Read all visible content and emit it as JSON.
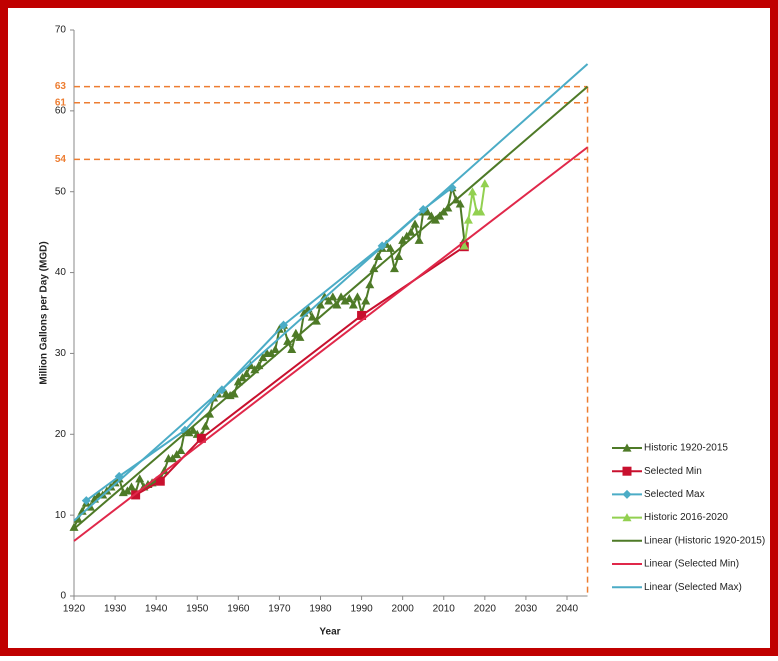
{
  "chart_data": {
    "type": "line",
    "xlabel": "Year",
    "ylabel": "Million Gallons per Day (MGD)",
    "xlim": [
      1920,
      2045
    ],
    "xticks": [
      1920,
      1930,
      1940,
      1950,
      1960,
      1970,
      1980,
      1990,
      2000,
      2010,
      2020,
      2030,
      2040
    ],
    "ylim": [
      0,
      70
    ],
    "yticks": [
      0,
      10,
      20,
      30,
      40,
      50,
      60,
      70
    ],
    "reference_lines": {
      "y": [
        63,
        61,
        54
      ],
      "x": [
        2045
      ],
      "color": "#ed7d31"
    },
    "series": [
      {
        "name": "Historic 1920-2015",
        "color": "#4e7a27",
        "marker": "triangle",
        "x": [
          1920,
          1921,
          1922,
          1923,
          1924,
          1925,
          1926,
          1927,
          1928,
          1929,
          1930,
          1931,
          1932,
          1933,
          1934,
          1935,
          1936,
          1937,
          1938,
          1939,
          1940,
          1941,
          1942,
          1943,
          1944,
          1945,
          1946,
          1947,
          1948,
          1949,
          1950,
          1951,
          1952,
          1953,
          1954,
          1955,
          1956,
          1957,
          1958,
          1959,
          1960,
          1961,
          1962,
          1963,
          1964,
          1965,
          1966,
          1967,
          1968,
          1969,
          1970,
          1971,
          1972,
          1973,
          1974,
          1975,
          1976,
          1977,
          1978,
          1979,
          1980,
          1981,
          1982,
          1983,
          1984,
          1985,
          1986,
          1987,
          1988,
          1989,
          1990,
          1991,
          1992,
          1993,
          1994,
          1995,
          1996,
          1997,
          1998,
          1999,
          2000,
          2001,
          2002,
          2003,
          2004,
          2005,
          2006,
          2007,
          2008,
          2009,
          2010,
          2011,
          2012,
          2013,
          2014,
          2015
        ],
        "values": [
          8.5,
          9.5,
          10.5,
          11.5,
          11,
          12,
          12.5,
          12.5,
          13,
          13.5,
          14,
          14.5,
          12.8,
          13,
          13.5,
          12.8,
          14.5,
          13.5,
          13.8,
          14,
          14.2,
          14.5,
          15.5,
          17,
          17,
          17.5,
          18,
          20.5,
          20.2,
          20.5,
          20,
          19.8,
          21,
          22.5,
          24.5,
          25,
          25.5,
          25,
          24.8,
          25,
          26.5,
          27,
          27.5,
          28.5,
          28,
          28.5,
          29.5,
          30,
          30,
          30.5,
          33,
          33.5,
          31.5,
          30.5,
          32.5,
          32,
          35,
          35.5,
          34.5,
          34,
          36,
          37,
          36.5,
          37,
          36,
          37,
          36.5,
          36.8,
          36,
          37,
          35,
          36.5,
          38.5,
          40.5,
          42,
          43,
          43.5,
          43,
          40.5,
          42,
          44,
          44.5,
          45,
          46,
          44,
          47.5,
          47.5,
          47,
          46.5,
          47,
          47.5,
          48,
          50.5,
          49,
          48.5,
          44
        ]
      },
      {
        "name": "Selected Min",
        "color": "#c8102e",
        "marker": "square",
        "x": [
          1935,
          1941,
          1951,
          1990,
          2015
        ],
        "values": [
          12.5,
          14.2,
          19.5,
          34.7,
          43.2
        ]
      },
      {
        "name": "Selected Max",
        "color": "#4bacc6",
        "marker": "diamond",
        "x": [
          1923,
          1931,
          1947,
          1956,
          1971,
          1995,
          2005,
          2012
        ],
        "values": [
          11.8,
          14.8,
          20.5,
          25.5,
          33.5,
          43.3,
          47.8,
          50.5
        ]
      },
      {
        "name": "Historic 2016-2020",
        "color": "#92d050",
        "marker": "triangle",
        "x": [
          2015,
          2016,
          2017,
          2018,
          2019,
          2020
        ],
        "values": [
          43.3,
          46.5,
          50,
          47.5,
          47.5,
          51
        ]
      },
      {
        "name": "Linear (Historic 1920-2015)",
        "color": "#4e7a27",
        "marker": "none",
        "x": [
          1920,
          2045
        ],
        "values": [
          8.3,
          63
        ]
      },
      {
        "name": "Linear (Selected Min)",
        "color": "#e0284a",
        "marker": "none",
        "x": [
          1920,
          2045
        ],
        "values": [
          6.8,
          55.5
        ]
      },
      {
        "name": "Linear (Selected Max)",
        "color": "#4bacc6",
        "marker": "none",
        "x": [
          1920,
          2045
        ],
        "values": [
          9.3,
          65.8
        ]
      }
    ]
  }
}
